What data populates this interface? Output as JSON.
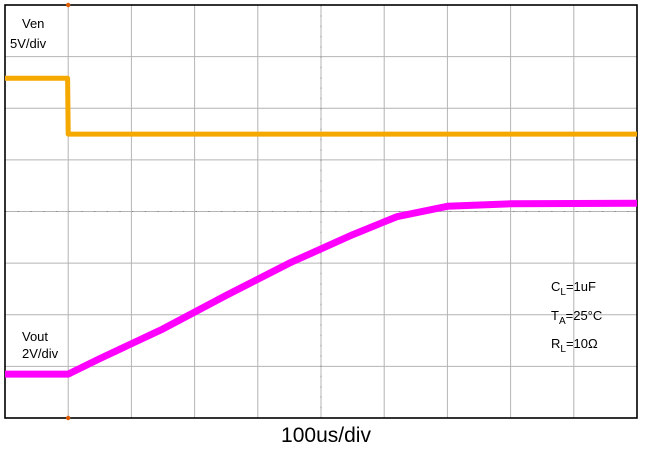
{
  "colors": {
    "ven_trace": "#f5a800",
    "vout_trace": "#ff00ff",
    "grid": "#b4b4b4",
    "frame": "#000000",
    "background": "#ffffff"
  },
  "chart_data": {
    "type": "line",
    "divisions": {
      "x": 10,
      "y": 8
    },
    "x_unit": "us",
    "xlim": [
      0,
      1000
    ],
    "timebase_label": "100us/div",
    "series": [
      {
        "name": "Ven",
        "scale_label": "5V/div",
        "volts_per_div": 5,
        "points": [
          [
            0,
            5.4
          ],
          [
            99,
            5.4
          ],
          [
            100,
            0
          ],
          [
            1000,
            0
          ]
        ]
      },
      {
        "name": "Vout",
        "scale_label": "2V/div",
        "volts_per_div": 2,
        "points": [
          [
            0,
            0
          ],
          [
            100,
            0
          ],
          [
            150,
            0.6
          ],
          [
            250,
            1.75
          ],
          [
            350,
            3.05
          ],
          [
            450,
            4.3
          ],
          [
            550,
            5.4
          ],
          [
            620,
            6.1
          ],
          [
            700,
            6.5
          ],
          [
            800,
            6.6
          ],
          [
            1000,
            6.62
          ]
        ]
      }
    ],
    "annotations": {
      "cl_main": "C",
      "cl_sub": "L",
      "cl_value": "=1uF",
      "ta_main": "T",
      "ta_sub": "A",
      "ta_value": "=25°C",
      "rl_main": "R",
      "rl_sub": "L",
      "rl_value": "=10Ω"
    },
    "grid": true
  }
}
